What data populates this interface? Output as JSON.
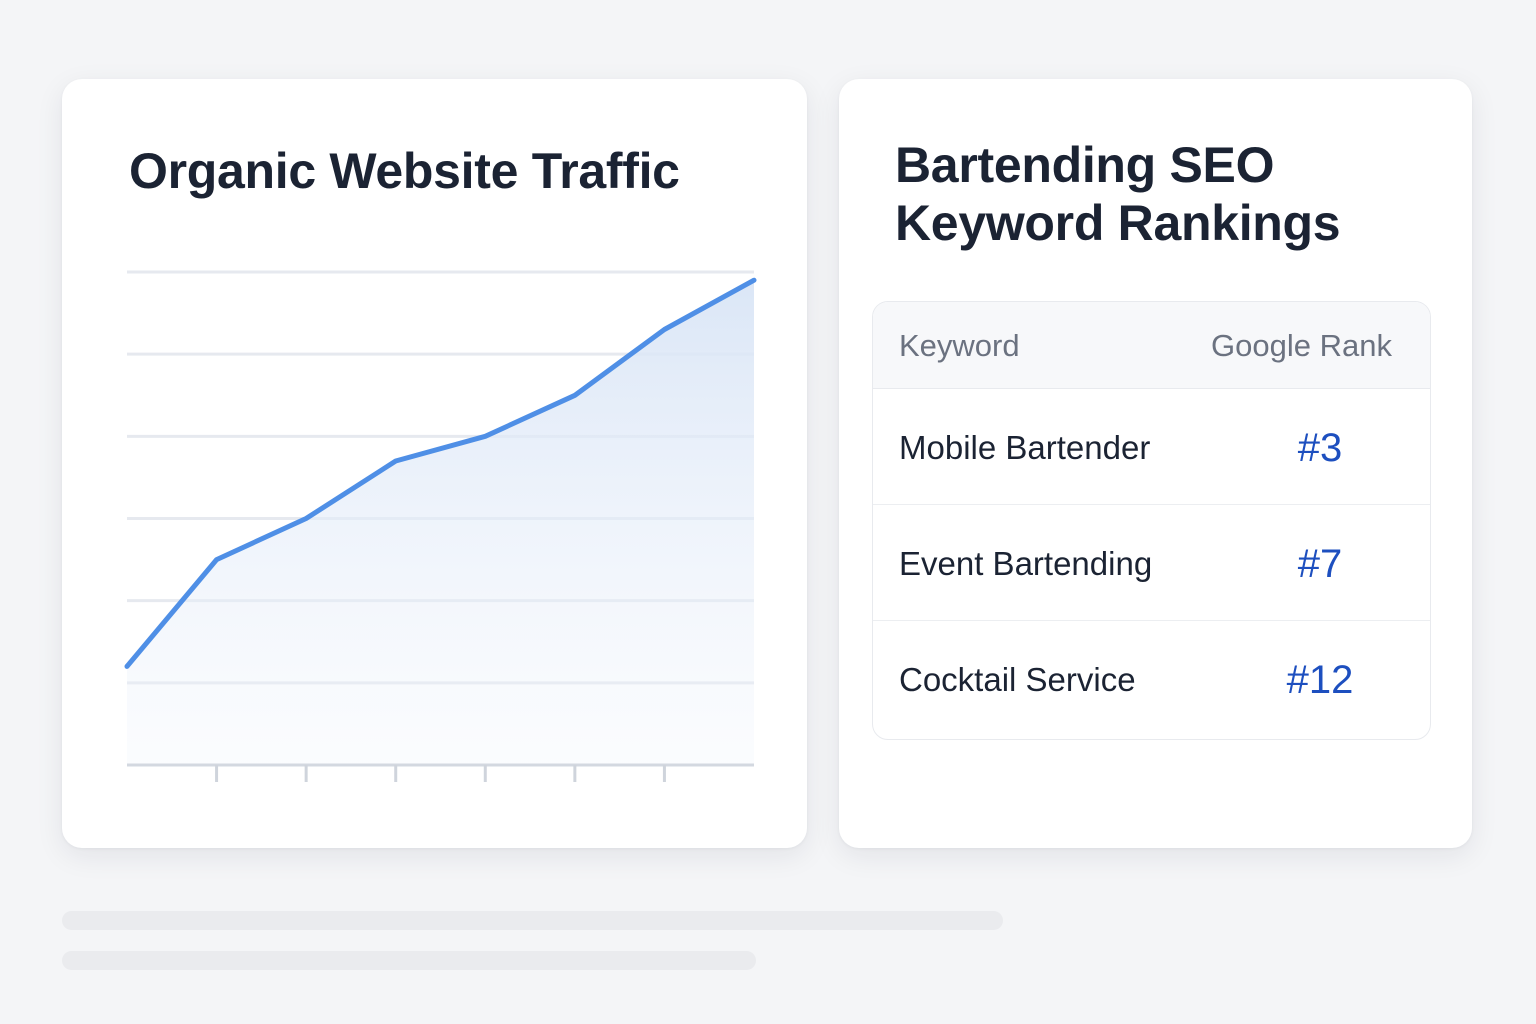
{
  "traffic_card": {
    "title": "Organic Website Traffic"
  },
  "chart_data": {
    "type": "area",
    "title": "Organic Website Traffic",
    "xlabel": "",
    "ylabel": "",
    "x": [
      0,
      1,
      2,
      3,
      4,
      5,
      6,
      7
    ],
    "values": [
      1.2,
      2.5,
      3.0,
      3.7,
      4.0,
      4.5,
      5.3,
      5.9
    ],
    "ylim": [
      0,
      6.0
    ],
    "xlim": [
      0,
      7
    ],
    "gridlines_y": [
      1,
      2,
      3,
      4,
      5,
      6
    ],
    "x_ticks": [
      1,
      2,
      3,
      4,
      5,
      6
    ],
    "grid": true,
    "legend": "none",
    "line_color": "#4f8fe6",
    "fill_color": "#dfe9f7"
  },
  "ranking_card": {
    "title": "Bartending SEO Keyword Rankings",
    "table": {
      "headers": {
        "keyword": "Keyword",
        "rank": "Google Rank"
      },
      "rows": [
        {
          "keyword": "Mobile Bartender",
          "rank": "#3"
        },
        {
          "keyword": "Event Bartending",
          "rank": "#7"
        },
        {
          "keyword": "Cocktail Service",
          "rank": "#12"
        }
      ]
    },
    "rank_color": "#1d4fbf"
  }
}
